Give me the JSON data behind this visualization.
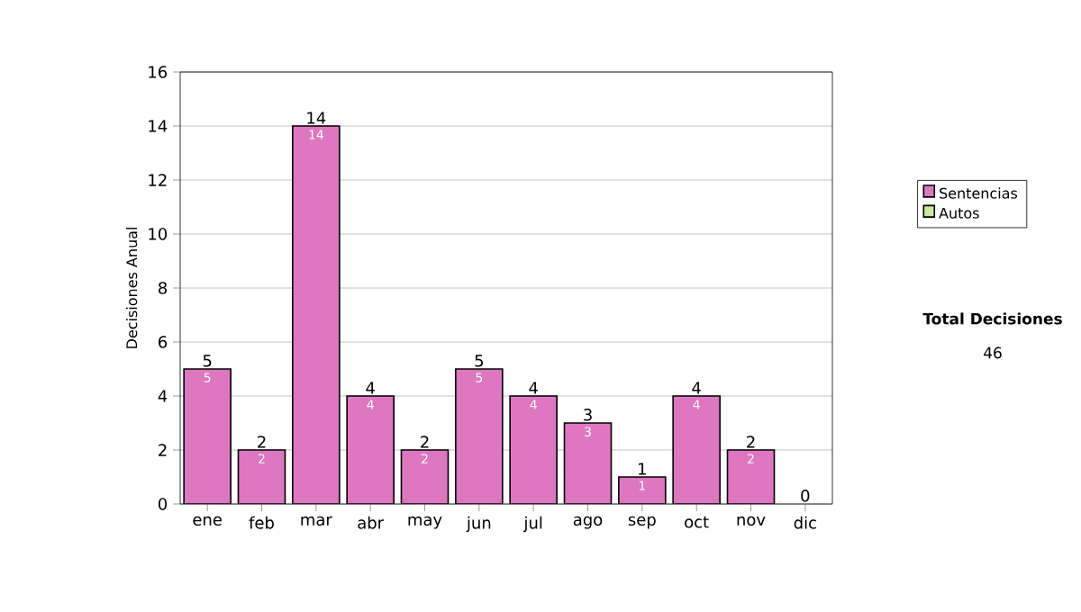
{
  "chart_data": {
    "type": "bar",
    "stacked": true,
    "ylabel": "Decisiones Anual",
    "categories": [
      "ene",
      "feb",
      "mar",
      "abr",
      "may",
      "jun",
      "jul",
      "ago",
      "sep",
      "oct",
      "nov",
      "dic"
    ],
    "series": [
      {
        "name": "Sentencias",
        "color": "#dd77c0",
        "values": [
          5,
          2,
          14,
          4,
          2,
          5,
          4,
          3,
          1,
          4,
          2,
          0
        ],
        "value_labels": [
          "5",
          "2",
          "14",
          "4",
          "2",
          "5",
          "4",
          "3",
          "1",
          "4",
          "2",
          null
        ]
      },
      {
        "name": "Autos",
        "color": "#cce899",
        "values": [
          0,
          0,
          0,
          0,
          0,
          0,
          0,
          0,
          0,
          0,
          0,
          0
        ]
      }
    ],
    "totals": [
      "5",
      "2",
      "14",
      "4",
      "2",
      "5",
      "4",
      "3",
      "1",
      "4",
      "2",
      "0"
    ],
    "ylim": [
      0,
      16
    ],
    "yticks": [
      0,
      2,
      4,
      6,
      8,
      10,
      12,
      14,
      16
    ],
    "grid": "y",
    "legend": "right",
    "annotations": [
      "Total Decisiones",
      "46"
    ]
  }
}
